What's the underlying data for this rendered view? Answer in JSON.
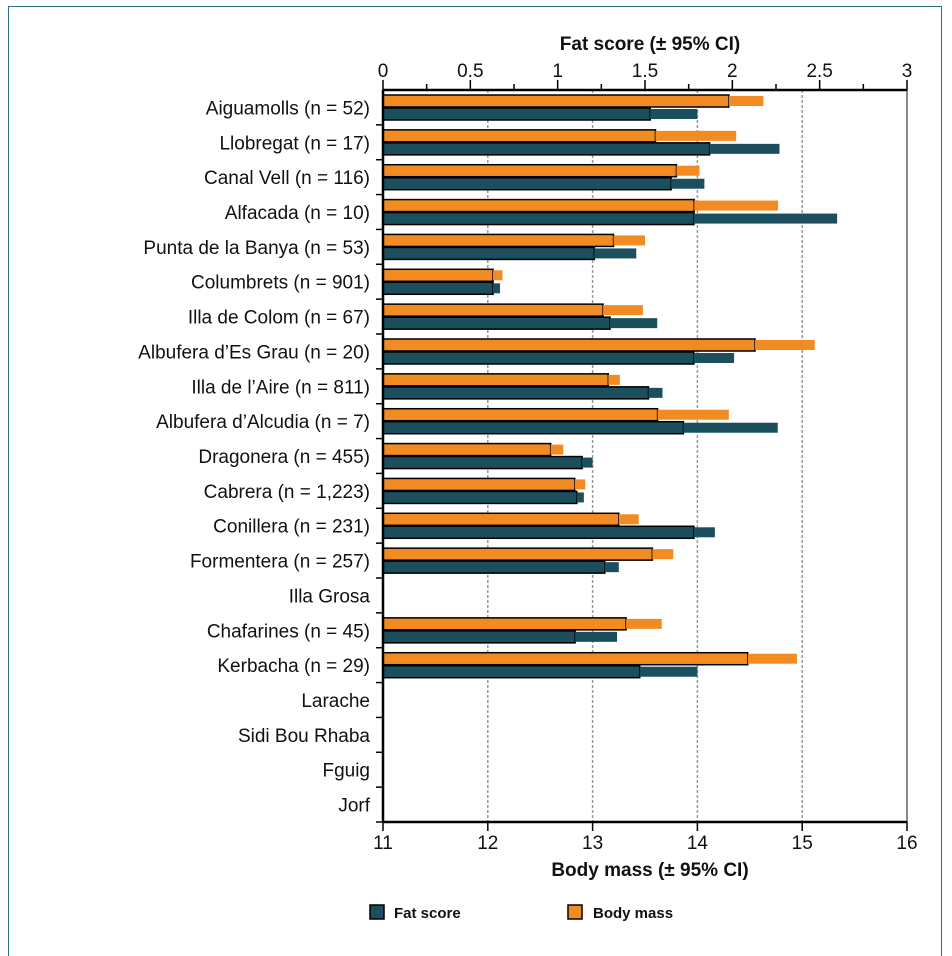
{
  "chart_data": {
    "type": "bar",
    "orientation": "horizontal",
    "top_axis": {
      "title": "Fat score (± 95% CI)",
      "min": 0,
      "max": 3,
      "ticks": [
        "0",
        "0.5",
        "1",
        "1.5",
        "2",
        "2.5",
        "3"
      ]
    },
    "bottom_axis": {
      "title": "Body mass (±  95% CI)",
      "min": 11,
      "max": 16,
      "ticks": [
        "11",
        "12",
        "13",
        "14",
        "15",
        "16"
      ]
    },
    "grid": true,
    "legend_placement": "bottom",
    "categories": [
      "Aiguamolls (n = 52)",
      "Llobregat (n = 17)",
      "Canal Vell (n = 116)",
      "Alfacada (n = 10)",
      "Punta de la Banya (n = 53)",
      "Columbrets (n = 901)",
      "Illa de Colom (n = 67)",
      "Albufera d’Es Grau (n = 20)",
      "Illa de l’Aire (n = 811)",
      "Albufera d’Alcudia (n = 7)",
      "Dragonera (n = 455)",
      "Cabrera (n = 1,223)",
      "Conillera (n = 231)",
      "Formentera (n = 257)",
      "Illa Grosa",
      "Chafarines (n = 45)",
      "Kerbacha (n = 29)",
      "Larache",
      "Sidi Bou Rhaba",
      "Fguig",
      "Jorf"
    ],
    "series": [
      {
        "name": "Body mass",
        "axis": "bottom",
        "color": "#f28c22",
        "values": [
          14.3,
          13.6,
          13.8,
          13.97,
          13.2,
          12.05,
          13.1,
          14.55,
          13.15,
          13.62,
          12.6,
          12.83,
          13.25,
          13.57,
          null,
          13.32,
          14.48,
          null,
          null,
          null,
          null
        ],
        "ci_upper": [
          14.63,
          14.37,
          14.02,
          14.77,
          13.5,
          12.14,
          13.48,
          15.12,
          13.26,
          14.3,
          12.72,
          12.93,
          13.44,
          13.77,
          null,
          13.66,
          14.95,
          null,
          null,
          null,
          null
        ]
      },
      {
        "name": "Fat score",
        "axis": "top",
        "color": "#1b4f5e",
        "values": [
          1.53,
          1.87,
          1.65,
          1.78,
          1.21,
          0.63,
          1.3,
          1.78,
          1.52,
          1.72,
          1.14,
          1.11,
          1.78,
          1.27,
          null,
          1.1,
          1.47,
          null,
          null,
          null,
          null
        ],
        "ci_upper": [
          1.8,
          2.27,
          1.84,
          2.6,
          1.45,
          0.67,
          1.57,
          2.01,
          1.6,
          2.26,
          1.2,
          1.15,
          1.9,
          1.35,
          null,
          1.34,
          1.8,
          null,
          null,
          null,
          null
        ]
      }
    ]
  }
}
